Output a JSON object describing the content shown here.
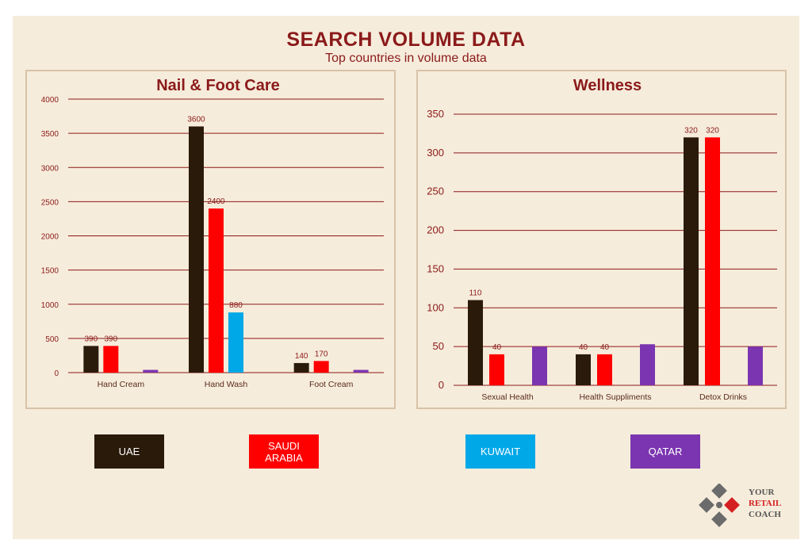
{
  "header": {
    "title": "SEARCH VOLUME DATA",
    "subtitle": "Top countries in volume data"
  },
  "colors": {
    "uae": "#2a1a0a",
    "saudi_arabia": "#ff0000",
    "kuwait": "#00a8e8",
    "qatar": "#7b35b0",
    "title": "#8b1a1a",
    "gridline": "#8b1a1a"
  },
  "legend": [
    {
      "label": "UAE",
      "color": "#2a1a0a"
    },
    {
      "label": "SAUDI ARABIA",
      "color": "#ff0000"
    },
    {
      "label": "KUWAIT",
      "color": "#00a8e8"
    },
    {
      "label": "QATAR",
      "color": "#7b35b0"
    }
  ],
  "logo": {
    "icon": "your-retail-coach-logo-icon",
    "line1": "YOUR",
    "line2": "RETAIL",
    "line3": "COACH"
  },
  "chart_data": [
    {
      "type": "bar",
      "title": "Nail & Foot Care",
      "categories": [
        "Hand Cream",
        "Hand Wash",
        "Foot Cream"
      ],
      "ylim": [
        0,
        4000
      ],
      "yticks": [
        0,
        500,
        1000,
        1500,
        2000,
        2500,
        3000,
        3500,
        4000
      ],
      "grid": true,
      "series": [
        {
          "name": "UAE",
          "values": [
            390,
            3600,
            140
          ],
          "labels": [
            "390",
            "3600",
            "140"
          ]
        },
        {
          "name": "SAUDI ARABIA",
          "values": [
            390,
            2400,
            170
          ],
          "labels": [
            "390",
            "2400",
            "170"
          ]
        },
        {
          "name": "KUWAIT",
          "values": [
            0,
            880,
            0
          ],
          "labels": [
            "",
            "880",
            ""
          ]
        },
        {
          "name": "QATAR",
          "values": [
            40,
            0,
            40
          ],
          "labels": [
            "",
            "",
            ""
          ]
        }
      ]
    },
    {
      "type": "bar",
      "title": "Wellness",
      "categories": [
        "Sexual Health",
        "Health Suppliments",
        "Detox Drinks"
      ],
      "ylim": [
        0,
        350
      ],
      "yticks": [
        0,
        50,
        100,
        150,
        200,
        250,
        300,
        350
      ],
      "grid": true,
      "series": [
        {
          "name": "UAE",
          "values": [
            110,
            40,
            320
          ],
          "labels": [
            "110",
            "40",
            "320"
          ]
        },
        {
          "name": "SAUDI ARABIA",
          "values": [
            40,
            40,
            320
          ],
          "labels": [
            "40",
            "40",
            "320"
          ]
        },
        {
          "name": "KUWAIT",
          "values": [
            0,
            0,
            0
          ],
          "labels": [
            "",
            "",
            ""
          ]
        },
        {
          "name": "QATAR",
          "values": [
            50,
            53,
            50
          ],
          "labels": [
            "",
            "",
            ""
          ]
        }
      ]
    }
  ]
}
